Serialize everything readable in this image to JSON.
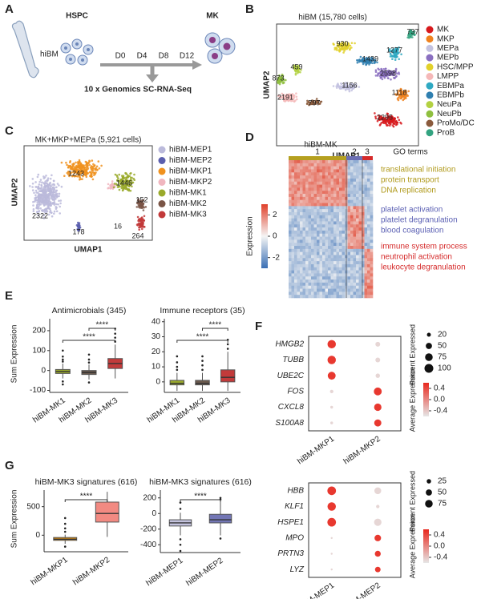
{
  "panel_a": {
    "letter": "A",
    "source": "hiBM",
    "start": "HSPC",
    "end": "MK",
    "days": [
      "D0",
      "D4",
      "D8",
      "D12"
    ],
    "method": "10 x Genomics SC-RNA-Seq"
  },
  "panel_b": {
    "letter": "B",
    "title": "hiBM (15,780 cells)",
    "x_label": "UMAP1",
    "y_label": "UMAP2",
    "legend": [
      {
        "name": "MK",
        "color": "#d7191c"
      },
      {
        "name": "MKP",
        "color": "#f0821e"
      },
      {
        "name": "MEPa",
        "color": "#c3c2e0"
      },
      {
        "name": "MEPb",
        "color": "#8a6fc0"
      },
      {
        "name": "HSC/MPP",
        "color": "#e2d12b"
      },
      {
        "name": "LMPP",
        "color": "#f5b8b8"
      },
      {
        "name": "EBMPa",
        "color": "#2fa9c2"
      },
      {
        "name": "EBMPb",
        "color": "#2f7fb0"
      },
      {
        "name": "NeuPa",
        "color": "#b3d142"
      },
      {
        "name": "NeuPb",
        "color": "#8fbf3f"
      },
      {
        "name": "ProMo/DC",
        "color": "#8a5a3c"
      },
      {
        "name": "ProB",
        "color": "#33a380"
      }
    ],
    "cluster_labels": [
      737,
      930,
      1277,
      1439,
      459,
      873,
      2598,
      1156,
      1118,
      2191,
      797,
      2295
    ]
  },
  "panel_c": {
    "letter": "C",
    "title": "MK+MKP+MEPa (5,921 cells)",
    "x_label": "UMAP1",
    "y_label": "UMAP2",
    "legend": [
      {
        "name": "hiBM-MEP1",
        "color": "#bbbadb"
      },
      {
        "name": "hiBM-MEP2",
        "color": "#5b5fae"
      },
      {
        "name": "hiBM-MKP1",
        "color": "#f0921e"
      },
      {
        "name": "hiBM-MKP2",
        "color": "#f0b6bf"
      },
      {
        "name": "hiBM-MK1",
        "color": "#9aaa2b"
      },
      {
        "name": "hiBM-MK2",
        "color": "#7a5546"
      },
      {
        "name": "hiBM-MK3",
        "color": "#c23a3a"
      }
    ],
    "cluster_labels": [
      1243,
      1446,
      152,
      2322,
      16,
      264,
      178
    ]
  },
  "panel_d": {
    "letter": "D",
    "title": "hiBM-MK",
    "cluster_labels": [
      "1",
      "2",
      "3"
    ],
    "go_header": "GO terms",
    "go_terms": [
      {
        "text": "translational initiation",
        "color": "#b09a1c"
      },
      {
        "text": "protein transport",
        "color": "#b09a1c"
      },
      {
        "text": "DNA replication",
        "color": "#b09a1c"
      },
      {
        "text": "platelet activation",
        "color": "#5a5fb3"
      },
      {
        "text": "platelet degranulation",
        "color": "#5a5fb3"
      },
      {
        "text": "blood coagulation",
        "color": "#5a5fb3"
      },
      {
        "text": "immune system process",
        "color": "#d52a2a"
      },
      {
        "text": "neutrophil activation",
        "color": "#d52a2a"
      },
      {
        "text": "leukocyte degranulation",
        "color": "#d52a2a"
      }
    ],
    "colorbar_label": "Expression",
    "clim": [
      -3,
      3
    ],
    "colorbar_ticks": [
      2,
      0,
      -2
    ]
  },
  "panel_e": {
    "letter": "E",
    "y_label": "Sum Expression",
    "plots": [
      {
        "title": "Antimicrobials (345)",
        "categories": [
          "hiBM-MK1",
          "hiBM-MK2",
          "hiBM-MK3"
        ],
        "colors": [
          "#9aaa2b",
          "#6b5a4e",
          "#c23a3a"
        ],
        "ylim": [
          -110,
          260
        ],
        "yticks": [
          200,
          100,
          0,
          -100
        ],
        "boxes": [
          {
            "q1": -15,
            "median": -5,
            "q3": 5,
            "whisker_low": -40,
            "whisker_high": 35,
            "outliers": [
              45,
              55,
              70,
              100,
              -55,
              -70
            ]
          },
          {
            "q1": -20,
            "median": -10,
            "q3": 0,
            "whisker_low": -45,
            "whisker_high": 30,
            "outliers": [
              40,
              55,
              80,
              -60
            ]
          },
          {
            "q1": 10,
            "median": 35,
            "q3": 60,
            "whisker_low": -40,
            "whisker_high": 130,
            "outliers": [
              145,
              165,
              185,
              210
            ]
          }
        ],
        "comparisons": [
          {
            "groups": [
              "hiBM-MK2",
              "hiBM-MK3"
            ],
            "label": "****"
          },
          {
            "groups": [
              "hiBM-MK1",
              "hiBM-MK3"
            ],
            "label": "****"
          }
        ]
      },
      {
        "title": "Immune receptors (35)",
        "categories": [
          "hiBM-MK1",
          "hiBM-MK2",
          "hiBM-MK3"
        ],
        "colors": [
          "#9aaa2b",
          "#6b5a4e",
          "#c23a3a"
        ],
        "ylim": [
          -7,
          42
        ],
        "yticks": [
          40,
          30,
          20,
          10,
          0
        ],
        "boxes": [
          {
            "q1": -2,
            "median": -1,
            "q3": 1,
            "whisker_low": -6,
            "whisker_high": 6,
            "outliers": [
              8,
              10,
              13,
              17
            ]
          },
          {
            "q1": -2,
            "median": -1,
            "q3": 1,
            "whisker_low": -6,
            "whisker_high": 6,
            "outliers": [
              8,
              11,
              14,
              17
            ]
          },
          {
            "q1": 0,
            "median": 3,
            "q3": 8,
            "whisker_low": -6,
            "whisker_high": 20,
            "outliers": [
              22,
              25,
              28
            ]
          }
        ],
        "comparisons": [
          {
            "groups": [
              "hiBM-MK2",
              "hiBM-MK3"
            ],
            "label": "****"
          },
          {
            "groups": [
              "hiBM-MK1",
              "hiBM-MK3"
            ],
            "label": "****"
          }
        ]
      }
    ]
  },
  "panel_f": {
    "letter": "F",
    "plots": [
      {
        "genes": [
          "HMGB2",
          "TUBB",
          "UBE2C",
          "FOS",
          "CXCL8",
          "S100A8"
        ],
        "groups": [
          "hiBM-MKP1",
          "hiBM-MKP2"
        ],
        "percent": [
          [
            90,
            30
          ],
          [
            90,
            30
          ],
          [
            80,
            25
          ],
          [
            15,
            80
          ],
          [
            10,
            70
          ],
          [
            10,
            65
          ]
        ],
        "average": [
          [
            0.5,
            -0.5
          ],
          [
            0.5,
            -0.5
          ],
          [
            0.5,
            -0.5
          ],
          [
            -0.5,
            0.5
          ],
          [
            -0.5,
            0.5
          ],
          [
            -0.5,
            0.5
          ]
        ],
        "size_title": "Percent Expressed",
        "size_ticks": [
          20,
          50,
          75,
          100
        ],
        "color_title": "Average Expression",
        "clim": [
          -0.6,
          0.6
        ],
        "color_ticks": [
          0.4,
          {
            "value": 0,
            "label": "0.0"
          },
          -0.4
        ]
      },
      {
        "genes": [
          "HBB",
          "KLF1",
          "HSPE1",
          "MPO",
          "PRTN3",
          "LYZ"
        ],
        "groups": [
          "hiBM-MEP1",
          "hiBM-MEP2"
        ],
        "percent": [
          [
            95,
            60
          ],
          [
            90,
            15
          ],
          [
            95,
            70
          ],
          [
            5,
            55
          ],
          [
            5,
            45
          ],
          [
            5,
            40
          ]
        ],
        "average": [
          [
            0.5,
            -0.5
          ],
          [
            0.5,
            -0.5
          ],
          [
            0.5,
            -0.5
          ],
          [
            -0.5,
            0.5
          ],
          [
            -0.5,
            0.5
          ],
          [
            -0.5,
            0.5
          ]
        ],
        "size_title": "Percent Expressed",
        "size_ticks": [
          25,
          50,
          75
        ],
        "color_title": "Average Expression",
        "clim": [
          -0.6,
          0.6
        ],
        "color_ticks": [
          0.4,
          {
            "value": 0,
            "label": "0.0"
          },
          -0.4
        ]
      }
    ]
  },
  "panel_g": {
    "letter": "G",
    "y_label": "Sum Expression",
    "plots": [
      {
        "title": "hiBM-MK3 signatures (616)",
        "categories": [
          "hiBM-MKP1",
          "hiBM-MKP2"
        ],
        "colors": [
          "#e8930f",
          "#f28a82"
        ],
        "ylim": [
          -290,
          790
        ],
        "yticks": [
          500,
          0
        ],
        "boxes": [
          {
            "q1": -90,
            "median": -70,
            "q3": -40,
            "whisker_low": -150,
            "whisker_high": 10,
            "outliers": [
              60,
              120,
              200,
              300,
              -200
            ]
          },
          {
            "q1": 230,
            "median": 380,
            "q3": 580,
            "whisker_low": -30,
            "whisker_high": 760,
            "outliers": []
          }
        ],
        "comparisons": [
          {
            "groups": [
              "hiBM-MKP1",
              "hiBM-MKP2"
            ],
            "label": "****"
          }
        ]
      },
      {
        "title": "hiBM-MK3 signatures (616)",
        "categories": [
          "hiBM-MEP1",
          "hiBM-MEP2"
        ],
        "colors": [
          "#c4c3de",
          "#7376b5"
        ],
        "ylim": [
          -500,
          300
        ],
        "yticks": [
          200,
          0,
          -200,
          -400
        ],
        "boxes": [
          {
            "q1": -160,
            "median": -120,
            "q3": -80,
            "whisker_low": -280,
            "whisker_high": 10,
            "outliers": [
              60,
              140,
              -330,
              -400,
              -480
            ]
          },
          {
            "q1": -120,
            "median": -80,
            "q3": -10,
            "whisker_low": -280,
            "whisker_high": 150,
            "outliers": [
              180,
              200,
              -320
            ]
          }
        ],
        "comparisons": [
          {
            "groups": [
              "hiBM-MEP1",
              "hiBM-MEP2"
            ],
            "label": "****"
          }
        ]
      }
    ]
  }
}
